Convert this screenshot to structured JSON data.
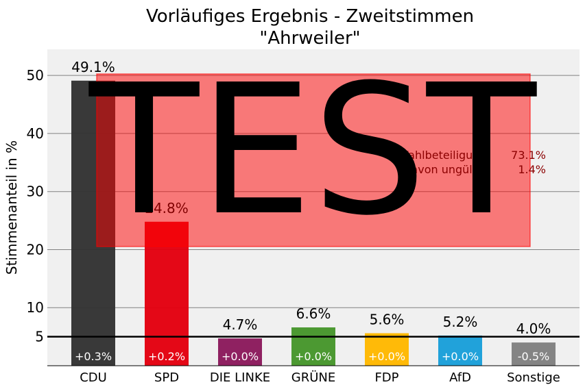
{
  "chart_data": {
    "type": "bar",
    "title": "Vorläufiges Ergebnis  - Zweitstimmen",
    "subtitle": "\"Ahrweiler\"",
    "xlabel": "",
    "ylabel": "Stimmenanteil in %",
    "ylim": [
      0,
      54.5
    ],
    "yticks": [
      "5",
      "10",
      "20",
      "30",
      "40",
      "50"
    ],
    "threshold": 5,
    "grid": true,
    "categories": [
      "CDU",
      "SPD",
      "DIE LINKE",
      "GRÜNE",
      "FDP",
      "AfD",
      "Sonstige"
    ],
    "values": [
      49.1,
      24.8,
      4.7,
      6.6,
      5.6,
      5.2,
      4.0
    ],
    "value_labels": [
      "49.1%",
      "24.8%",
      "4.7%",
      "6.6%",
      "5.6%",
      "5.2%",
      "4.0%"
    ],
    "change_labels": [
      "+0.3%",
      "+0.2%",
      "+0.0%",
      "+0.0%",
      "+0.0%",
      "+0.0%",
      "-0.5%"
    ],
    "colors": [
      "#333333",
      "#e3000f",
      "#8b1a5c",
      "#46962b",
      "#ffb800",
      "#1a9fd9",
      "#808080"
    ],
    "annotations": {
      "watermark": "TEST",
      "turnout_label": "Wahlbeteiligung:",
      "turnout_value": "73.1%",
      "invalid_label": "davon ungültig:",
      "invalid_value": "1.4%"
    }
  }
}
